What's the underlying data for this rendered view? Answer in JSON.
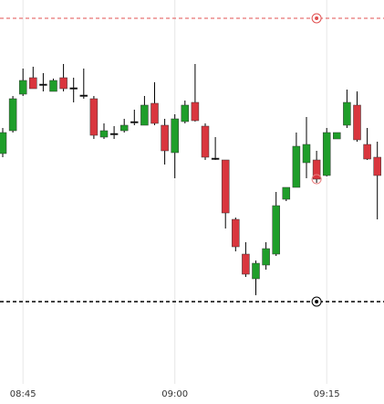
{
  "chart_data": {
    "type": "candlestick",
    "categories": [
      null,
      null,
      "08:45",
      null,
      null,
      null,
      null,
      null,
      null,
      null,
      null,
      null,
      null,
      null,
      null,
      null,
      null,
      "09:00",
      null,
      null,
      null,
      null,
      null,
      null,
      null,
      null,
      null,
      null,
      null,
      null,
      null,
      null,
      "09:15",
      null,
      null,
      null,
      null,
      null
    ],
    "open": [
      252,
      277,
      317,
      335,
      328,
      320,
      335,
      324,
      316,
      312,
      270,
      274,
      277,
      287,
      283,
      307,
      283,
      253,
      287,
      308,
      282,
      247,
      245,
      180,
      142,
      115,
      130,
      142,
      202,
      215,
      242,
      245,
      228,
      268,
      283,
      305,
      262,
      248
    ],
    "high": [
      280,
      315,
      345,
      347,
      340,
      334,
      350,
      335,
      345,
      315,
      285,
      282,
      290,
      300,
      315,
      330,
      290,
      295,
      310,
      350,
      285,
      270,
      245,
      182,
      155,
      135,
      155,
      210,
      215,
      275,
      292,
      255,
      280,
      275,
      322,
      320,
      280,
      265
    ],
    "low": [
      248,
      275,
      315,
      323,
      320,
      320,
      320,
      308,
      312,
      268,
      268,
      268,
      275,
      283,
      283,
      283,
      240,
      225,
      285,
      287,
      245,
      245,
      170,
      145,
      117,
      97,
      125,
      140,
      200,
      215,
      225,
      220,
      227,
      268,
      280,
      265,
      245,
      180
    ],
    "close": [
      275,
      312,
      332,
      323,
      328,
      332,
      323,
      324,
      316,
      272,
      277,
      274,
      283,
      287,
      305,
      285,
      255,
      290,
      305,
      288,
      248,
      247,
      187,
      150,
      120,
      132,
      148,
      195,
      215,
      260,
      262,
      224,
      275,
      275,
      308,
      267,
      246,
      228
    ],
    "up_color": "#1f9e2a",
    "down_color": "#d9363e",
    "flat_color": "#000000",
    "ylim": [
      0,
      420
    ],
    "grid": true,
    "levels": [
      {
        "value": 400,
        "color": "#e05050",
        "index": 31
      },
      {
        "value": 90,
        "color": "#000000",
        "index": 31
      }
    ],
    "markers": [
      {
        "value": 224,
        "color": "#e88080",
        "index": 31
      }
    ]
  }
}
